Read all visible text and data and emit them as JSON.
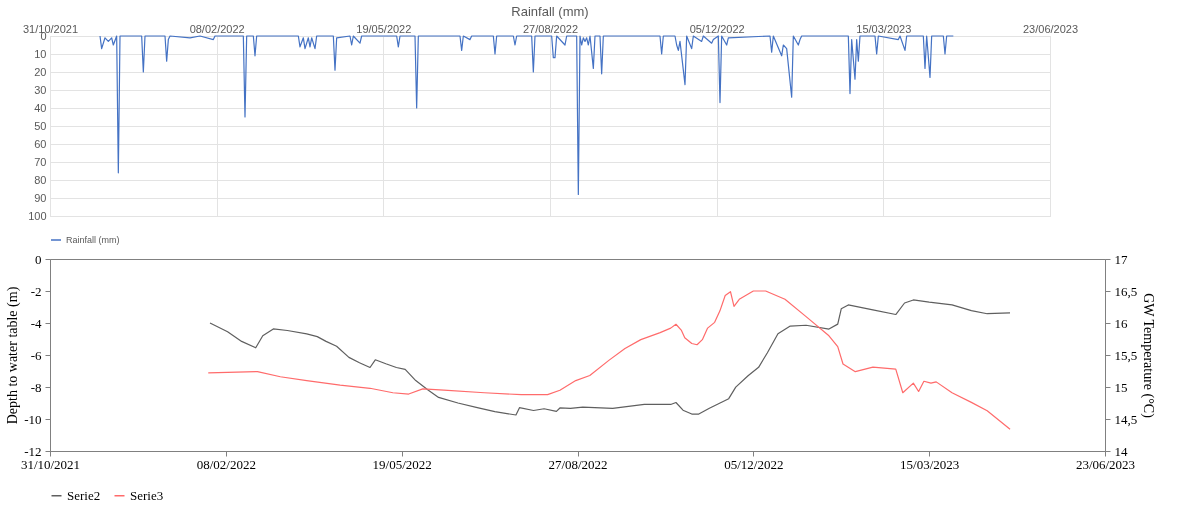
{
  "chart_data": [
    {
      "type": "line",
      "title": "Rainfall (mm)",
      "legend": "bottom",
      "grid": true,
      "xlim": [
        "2021-10-31",
        "2023-06-23"
      ],
      "xticks": [
        {
          "value": "2021-10-31",
          "label": "31/10/2021"
        },
        {
          "value": "2022-02-08",
          "label": "08/02/2022"
        },
        {
          "value": "2022-05-19",
          "label": "19/05/2022"
        },
        {
          "value": "2022-08-27",
          "label": "27/08/2022"
        },
        {
          "value": "2022-12-05",
          "label": "05/12/2022"
        },
        {
          "value": "2023-03-15",
          "label": "15/03/2023"
        },
        {
          "value": "2023-06-23",
          "label": "23/06/2023"
        }
      ],
      "ylim": [
        100,
        0
      ],
      "yticks": [
        0,
        10,
        20,
        30,
        40,
        50,
        60,
        70,
        80,
        90,
        100
      ],
      "series": [
        {
          "name": "Rainfall (mm)",
          "color": "#4472c4",
          "x": [
            "2021-11-30",
            "2021-12-01",
            "2021-12-03",
            "2021-12-05",
            "2021-12-07",
            "2021-12-08",
            "2021-12-10",
            "2021-12-11",
            "2021-12-12",
            "2021-12-25",
            "2021-12-26",
            "2021-12-27",
            "2022-01-08",
            "2022-01-09",
            "2022-01-10",
            "2022-01-11",
            "2022-01-23",
            "2022-01-29",
            "2022-02-06",
            "2022-02-07",
            "2022-02-24",
            "2022-02-25",
            "2022-02-26",
            "2022-03-02",
            "2022-03-03",
            "2022-03-04",
            "2022-03-29",
            "2022-03-30",
            "2022-04-01",
            "2022-04-02",
            "2022-04-04",
            "2022-04-05",
            "2022-04-06",
            "2022-04-08",
            "2022-04-09",
            "2022-04-19",
            "2022-04-20",
            "2022-04-21",
            "2022-04-29",
            "2022-04-30",
            "2022-05-01",
            "2022-05-05",
            "2022-05-06",
            "2022-05-27",
            "2022-05-28",
            "2022-05-29",
            "2022-06-07",
            "2022-06-08",
            "2022-06-09",
            "2022-07-04",
            "2022-07-05",
            "2022-07-06",
            "2022-07-10",
            "2022-07-11",
            "2022-07-24",
            "2022-07-25",
            "2022-07-26",
            "2022-08-05",
            "2022-08-06",
            "2022-08-07",
            "2022-08-16",
            "2022-08-17",
            "2022-08-18",
            "2022-08-28",
            "2022-08-29",
            "2022-08-30",
            "2022-08-31",
            "2022-09-05",
            "2022-09-06",
            "2022-09-12",
            "2022-09-13",
            "2022-09-14",
            "2022-09-15",
            "2022-09-16",
            "2022-09-17",
            "2022-09-18",
            "2022-09-19",
            "2022-09-20",
            "2022-09-22",
            "2022-09-23",
            "2022-09-26",
            "2022-09-27",
            "2022-09-28",
            "2022-11-01",
            "2022-11-02",
            "2022-11-03",
            "2022-11-10",
            "2022-11-11",
            "2022-11-12",
            "2022-11-13",
            "2022-11-16",
            "2022-11-17",
            "2022-11-20",
            "2022-11-21",
            "2022-11-26",
            "2022-11-27",
            "2022-12-02",
            "2022-12-03",
            "2022-12-06",
            "2022-12-07",
            "2022-12-08",
            "2022-12-11",
            "2022-12-12",
            "2023-01-06",
            "2023-01-07",
            "2023-01-08",
            "2023-01-13",
            "2023-01-14",
            "2023-01-16",
            "2023-01-19",
            "2023-01-20",
            "2023-01-23",
            "2023-01-24",
            "2023-01-25",
            "2023-02-22",
            "2023-02-23",
            "2023-02-24",
            "2023-02-26",
            "2023-02-27",
            "2023-02-28",
            "2023-03-01",
            "2023-03-10",
            "2023-03-11",
            "2023-03-12",
            "2023-03-24",
            "2023-03-25",
            "2023-03-28",
            "2023-03-29",
            "2023-04-08",
            "2023-04-09",
            "2023-04-10",
            "2023-04-12",
            "2023-04-13",
            "2023-04-20",
            "2023-04-21",
            "2023-04-22",
            "2023-04-26"
          ],
          "values": [
            0,
            7,
            1,
            3,
            1,
            5,
            0,
            76,
            0,
            0,
            20,
            0,
            0,
            14,
            2,
            0,
            1,
            0,
            2,
            0,
            0,
            45,
            0,
            0,
            11,
            0,
            0,
            6,
            1,
            7,
            1,
            6,
            1,
            7,
            0,
            0,
            19,
            1,
            0,
            5,
            0,
            4,
            0,
            0,
            6,
            0,
            0,
            40,
            0,
            0,
            8,
            0,
            2,
            0,
            0,
            10,
            0,
            0,
            5,
            0,
            0,
            20,
            0,
            0,
            12,
            12,
            0,
            5,
            0,
            0,
            88,
            0,
            5,
            1,
            3,
            1,
            5,
            0,
            18,
            0,
            0,
            21,
            0,
            0,
            10,
            0,
            0,
            5,
            8,
            3,
            27,
            0,
            7,
            0,
            3,
            0,
            4,
            2,
            0,
            37,
            0,
            5,
            1,
            0,
            9,
            0,
            11,
            5,
            7,
            34,
            0,
            5,
            2,
            0,
            0,
            32,
            2,
            24,
            2,
            14,
            0,
            0,
            10,
            0,
            2,
            0,
            8,
            0,
            0,
            18,
            0,
            23,
            0,
            0,
            10,
            0,
            0
          ]
        }
      ]
    },
    {
      "type": "line",
      "ylabel": "Depth to water table (m)",
      "y2label": "GW Temperature (°C)",
      "legend": "bottom",
      "xlim": [
        "2021-10-31",
        "2023-06-23"
      ],
      "xticks": [
        {
          "value": "2021-10-31",
          "label": "31/10/2021"
        },
        {
          "value": "2022-02-08",
          "label": "08/02/2022"
        },
        {
          "value": "2022-05-19",
          "label": "19/05/2022"
        },
        {
          "value": "2022-08-27",
          "label": "27/08/2022"
        },
        {
          "value": "2022-12-05",
          "label": "05/12/2022"
        },
        {
          "value": "2023-03-15",
          "label": "15/03/2023"
        },
        {
          "value": "2023-06-23",
          "label": "23/06/2023"
        }
      ],
      "ylim": [
        -12,
        0
      ],
      "yticks": [
        -12,
        -10,
        -8,
        -6,
        -4,
        -2,
        0
      ],
      "y2lim": [
        14,
        17
      ],
      "y2ticks": [
        14,
        {
          "value": 14.5,
          "label": "14,5"
        },
        15,
        {
          "value": 15.5,
          "label": "15,5"
        },
        16,
        {
          "value": 16.5,
          "label": "16,5"
        },
        17
      ],
      "series": [
        {
          "name": "Serie2",
          "color": "#5f5f5f",
          "x": [
            "2022-01-30",
            "2022-02-09",
            "2022-02-17",
            "2022-02-25",
            "2022-03-01",
            "2022-03-07",
            "2022-03-15",
            "2022-03-26",
            "2022-04-01",
            "2022-04-06",
            "2022-04-12",
            "2022-04-19",
            "2022-04-25",
            "2022-05-01",
            "2022-05-04",
            "2022-05-10",
            "2022-05-16",
            "2022-05-21",
            "2022-05-27",
            "2022-06-03",
            "2022-06-09",
            "2022-06-20",
            "2022-07-01",
            "2022-07-11",
            "2022-07-23",
            "2022-07-25",
            "2022-08-02",
            "2022-08-08",
            "2022-08-15",
            "2022-08-17",
            "2022-08-23",
            "2022-08-30",
            "2022-09-16",
            "2022-10-04",
            "2022-10-19",
            "2022-10-22",
            "2022-10-26",
            "2022-10-31",
            "2022-11-04",
            "2022-11-10",
            "2022-11-21",
            "2022-11-25",
            "2022-12-02",
            "2022-12-08",
            "2022-12-13",
            "2022-12-19",
            "2022-12-26",
            "2023-01-04",
            "2023-01-17",
            "2023-01-22",
            "2023-01-24",
            "2023-01-28",
            "2023-02-11",
            "2023-02-24",
            "2023-03-01",
            "2023-03-06",
            "2023-03-15",
            "2023-03-28",
            "2023-04-08",
            "2023-04-17",
            "2023-04-30"
          ],
          "values": [
            -4.0,
            -4.55,
            -5.15,
            -5.55,
            -4.8,
            -4.37,
            -4.47,
            -4.68,
            -4.85,
            -5.15,
            -5.45,
            -6.15,
            -6.48,
            -6.78,
            -6.3,
            -6.55,
            -6.78,
            -6.9,
            -7.6,
            -8.19,
            -8.65,
            -9.0,
            -9.29,
            -9.54,
            -9.75,
            -9.29,
            -9.47,
            -9.36,
            -9.52,
            -9.31,
            -9.33,
            -9.26,
            -9.33,
            -9.09,
            -9.09,
            -8.97,
            -9.45,
            -9.69,
            -9.69,
            -9.33,
            -8.73,
            -8.01,
            -7.3,
            -6.77,
            -5.86,
            -4.67,
            -4.19,
            -4.14,
            -4.38,
            -4.07,
            -3.11,
            -2.87,
            -3.18,
            -3.47,
            -2.75,
            -2.56,
            -2.7,
            -2.87,
            -3.23,
            -3.42,
            -3.37
          ]
        },
        {
          "name": "Serie3",
          "color": "#ff6b6b",
          "axis": "y2",
          "x": [
            "2022-01-29",
            "2022-02-09",
            "2022-02-26",
            "2022-03-11",
            "2022-03-26",
            "2022-04-14",
            "2022-05-01",
            "2022-05-14",
            "2022-05-23",
            "2022-05-31",
            "2022-06-12",
            "2022-07-05",
            "2022-07-26",
            "2022-08-10",
            "2022-08-17",
            "2022-08-26",
            "2022-09-03",
            "2022-09-14",
            "2022-09-23",
            "2022-10-02",
            "2022-10-13",
            "2022-10-19",
            "2022-10-22",
            "2022-10-25",
            "2022-10-27",
            "2022-10-31",
            "2022-11-03",
            "2022-11-06",
            "2022-11-09",
            "2022-11-13",
            "2022-11-16",
            "2022-11-19",
            "2022-11-22",
            "2022-11-24",
            "2022-11-27",
            "2022-12-05",
            "2022-12-12",
            "2022-12-23",
            "2023-01-04",
            "2023-01-17",
            "2023-01-22",
            "2023-01-25",
            "2023-02-01",
            "2023-02-11",
            "2023-02-24",
            "2023-02-28",
            "2023-03-06",
            "2023-03-09",
            "2023-03-12",
            "2023-03-16",
            "2023-03-19",
            "2023-03-28",
            "2023-04-08",
            "2023-04-17",
            "2023-04-30"
          ],
          "values": [
            15.22,
            15.23,
            15.24,
            15.16,
            15.1,
            15.03,
            14.98,
            14.91,
            14.89,
            14.97,
            14.95,
            14.91,
            14.88,
            14.88,
            14.95,
            15.1,
            15.18,
            15.42,
            15.6,
            15.74,
            15.85,
            15.92,
            15.98,
            15.89,
            15.77,
            15.68,
            15.66,
            15.74,
            15.92,
            16.01,
            16.19,
            16.43,
            16.49,
            16.26,
            16.37,
            16.5,
            16.5,
            16.37,
            16.1,
            15.8,
            15.63,
            15.36,
            15.24,
            15.31,
            15.28,
            14.91,
            15.06,
            14.93,
            15.09,
            15.06,
            15.08,
            14.91,
            14.76,
            14.63,
            14.34
          ]
        }
      ]
    }
  ]
}
